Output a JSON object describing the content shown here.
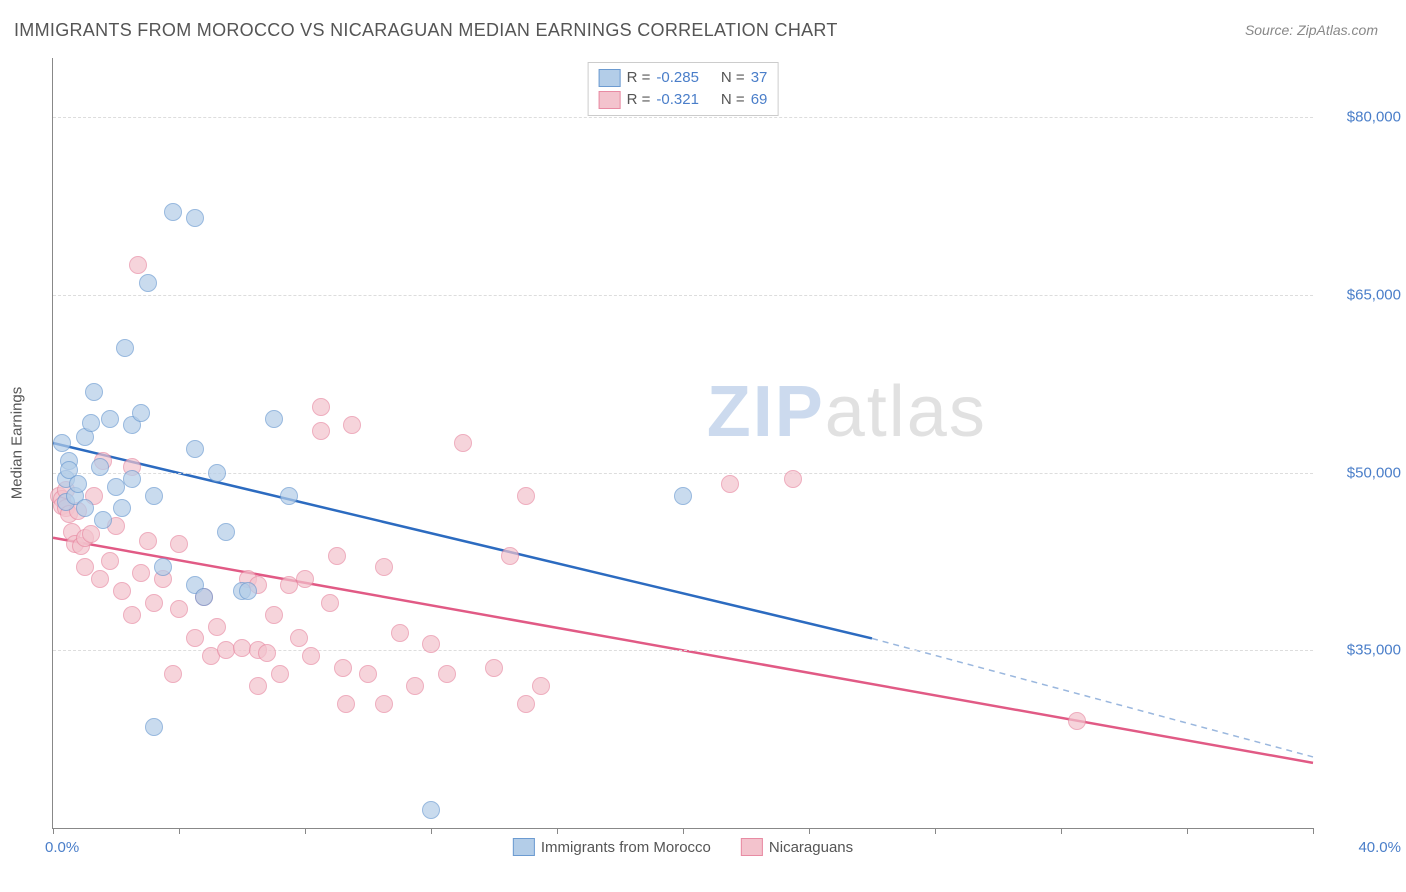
{
  "title": "IMMIGRANTS FROM MOROCCO VS NICARAGUAN MEDIAN EARNINGS CORRELATION CHART",
  "source_prefix": "Source: ",
  "source_name": "ZipAtlas.com",
  "ylabel": "Median Earnings",
  "xmin_label": "0.0%",
  "xmax_label": "40.0%",
  "watermark_zip": "ZIP",
  "watermark_atlas": "atlas",
  "watermark_color_zip": "#9ab7de",
  "watermark_color_atlas": "#c4c4c4",
  "chart": {
    "type": "scatter",
    "xlim": [
      0.0,
      40.0
    ],
    "ylim": [
      20000,
      85000
    ],
    "ytick_values": [
      35000,
      50000,
      65000,
      80000
    ],
    "ytick_labels": [
      "$35,000",
      "$50,000",
      "$65,000",
      "$80,000"
    ],
    "xtick_values": [
      0,
      4,
      8,
      12,
      16,
      20,
      24,
      28,
      32,
      36,
      40
    ],
    "grid_color": "#dddddd",
    "background_color": "#ffffff",
    "axis_color": "#888888",
    "point_radius": 8,
    "series": [
      {
        "name": "Immigrants from Morocco",
        "color_fill": "#b3cde8",
        "color_stroke": "#6c9bd1",
        "line_solid_color": "#2c6bc0",
        "line_dash_color": "#9ab7de",
        "r_label": "R = ",
        "r_value": "-0.285",
        "n_label": "N = ",
        "n_value": "37",
        "regression": {
          "x1": 0.0,
          "y1": 52500,
          "x2_solid": 26.0,
          "y2_solid": 36000,
          "x2_dash": 40.0,
          "y2_dash": 26000
        },
        "points": [
          [
            0.3,
            52500
          ],
          [
            0.4,
            49500
          ],
          [
            0.4,
            47500
          ],
          [
            0.5,
            51000
          ],
          [
            0.5,
            50200
          ],
          [
            0.7,
            48000
          ],
          [
            0.8,
            49000
          ],
          [
            1.0,
            47000
          ],
          [
            1.0,
            53000
          ],
          [
            1.2,
            54200
          ],
          [
            1.3,
            56800
          ],
          [
            1.5,
            50500
          ],
          [
            1.6,
            46000
          ],
          [
            1.8,
            54500
          ],
          [
            2.0,
            48800
          ],
          [
            2.2,
            47000
          ],
          [
            2.3,
            60500
          ],
          [
            2.5,
            54000
          ],
          [
            2.5,
            49500
          ],
          [
            2.8,
            55000
          ],
          [
            3.0,
            66000
          ],
          [
            3.2,
            48000
          ],
          [
            3.2,
            28500
          ],
          [
            3.5,
            42000
          ],
          [
            3.8,
            72000
          ],
          [
            4.5,
            71500
          ],
          [
            4.5,
            52000
          ],
          [
            4.5,
            40500
          ],
          [
            4.8,
            39500
          ],
          [
            5.2,
            50000
          ],
          [
            5.5,
            45000
          ],
          [
            6.0,
            40000
          ],
          [
            6.2,
            40000
          ],
          [
            7.0,
            54500
          ],
          [
            7.5,
            48000
          ],
          [
            12.0,
            21500
          ],
          [
            20.0,
            48000
          ]
        ]
      },
      {
        "name": "Nicaraguans",
        "color_fill": "#f3c3cd",
        "color_stroke": "#e88ba3",
        "line_solid_color": "#e15a85",
        "r_label": "R = ",
        "r_value": "-0.321",
        "n_label": "N = ",
        "n_value": "69",
        "regression": {
          "x1": 0.0,
          "y1": 44500,
          "x2_solid": 40.0,
          "y2_solid": 25500
        },
        "points": [
          [
            0.2,
            48000
          ],
          [
            0.3,
            47800
          ],
          [
            0.3,
            47200
          ],
          [
            0.4,
            48500
          ],
          [
            0.4,
            47000
          ],
          [
            0.5,
            46500
          ],
          [
            0.6,
            45000
          ],
          [
            0.7,
            44000
          ],
          [
            0.8,
            46800
          ],
          [
            0.9,
            43800
          ],
          [
            1.0,
            44500
          ],
          [
            1.0,
            42000
          ],
          [
            1.2,
            44800
          ],
          [
            1.3,
            48000
          ],
          [
            1.5,
            41000
          ],
          [
            1.6,
            51000
          ],
          [
            1.8,
            42500
          ],
          [
            2.0,
            45500
          ],
          [
            2.2,
            40000
          ],
          [
            2.5,
            50500
          ],
          [
            2.5,
            38000
          ],
          [
            2.7,
            67500
          ],
          [
            2.8,
            41500
          ],
          [
            3.0,
            44200
          ],
          [
            3.2,
            39000
          ],
          [
            3.5,
            41000
          ],
          [
            3.8,
            33000
          ],
          [
            4.0,
            38500
          ],
          [
            4.0,
            44000
          ],
          [
            4.5,
            36000
          ],
          [
            4.8,
            39500
          ],
          [
            5.0,
            34500
          ],
          [
            5.2,
            37000
          ],
          [
            5.5,
            35000
          ],
          [
            6.0,
            35200
          ],
          [
            6.2,
            41000
          ],
          [
            6.5,
            40500
          ],
          [
            6.5,
            35000
          ],
          [
            6.5,
            32000
          ],
          [
            6.8,
            34800
          ],
          [
            7.0,
            38000
          ],
          [
            7.2,
            33000
          ],
          [
            7.5,
            40500
          ],
          [
            7.8,
            36000
          ],
          [
            8.0,
            41000
          ],
          [
            8.2,
            34500
          ],
          [
            8.5,
            53500
          ],
          [
            8.5,
            55500
          ],
          [
            8.8,
            39000
          ],
          [
            9.0,
            43000
          ],
          [
            9.2,
            33500
          ],
          [
            9.3,
            30500
          ],
          [
            9.5,
            54000
          ],
          [
            10.0,
            33000
          ],
          [
            10.5,
            30500
          ],
          [
            10.5,
            42000
          ],
          [
            11.0,
            36500
          ],
          [
            11.5,
            32000
          ],
          [
            12.0,
            35500
          ],
          [
            12.5,
            33000
          ],
          [
            13.0,
            52500
          ],
          [
            14.0,
            33500
          ],
          [
            14.5,
            43000
          ],
          [
            15.0,
            48000
          ],
          [
            15.0,
            30500
          ],
          [
            15.5,
            32000
          ],
          [
            21.5,
            49000
          ],
          [
            23.5,
            49500
          ],
          [
            32.5,
            29000
          ]
        ]
      }
    ]
  }
}
